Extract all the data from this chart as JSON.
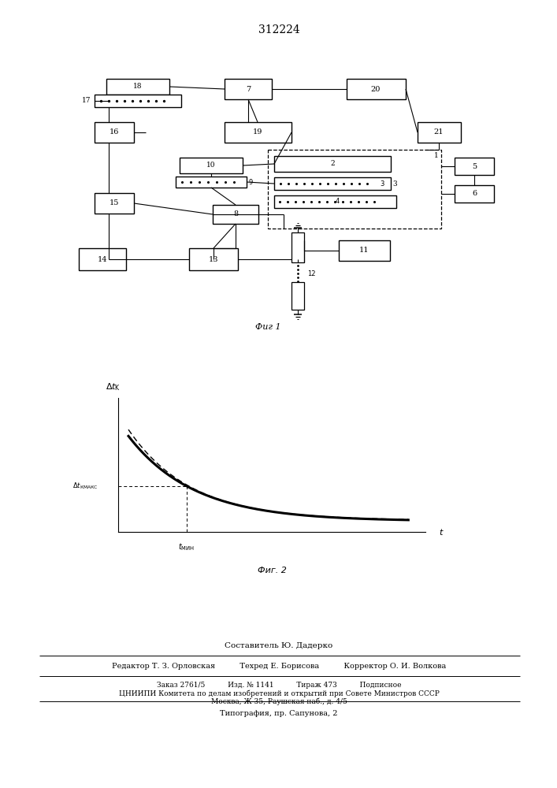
{
  "patent_number": "312224",
  "fig1_caption": "Фиг 1",
  "fig2_caption": "Фиг. 2",
  "bg_color": "#ffffff",
  "line_color": "#000000",
  "footer_lines": [
    "Составитель Ю. Дадерко",
    "Редактор Т. З. Орловская          Техред Е. Борисова          Корректор О. И. Волкова",
    "Заказ 2761/5          Изд. № 1141          Тираж 473          Подписное",
    "ЦНИИПИ Комитета по делам изобретений и открытий при Совете Министров СССР",
    "Москва, Ж-35, Раушская наб., д. 4/5",
    "Типография, пр. Сапунова, 2"
  ]
}
